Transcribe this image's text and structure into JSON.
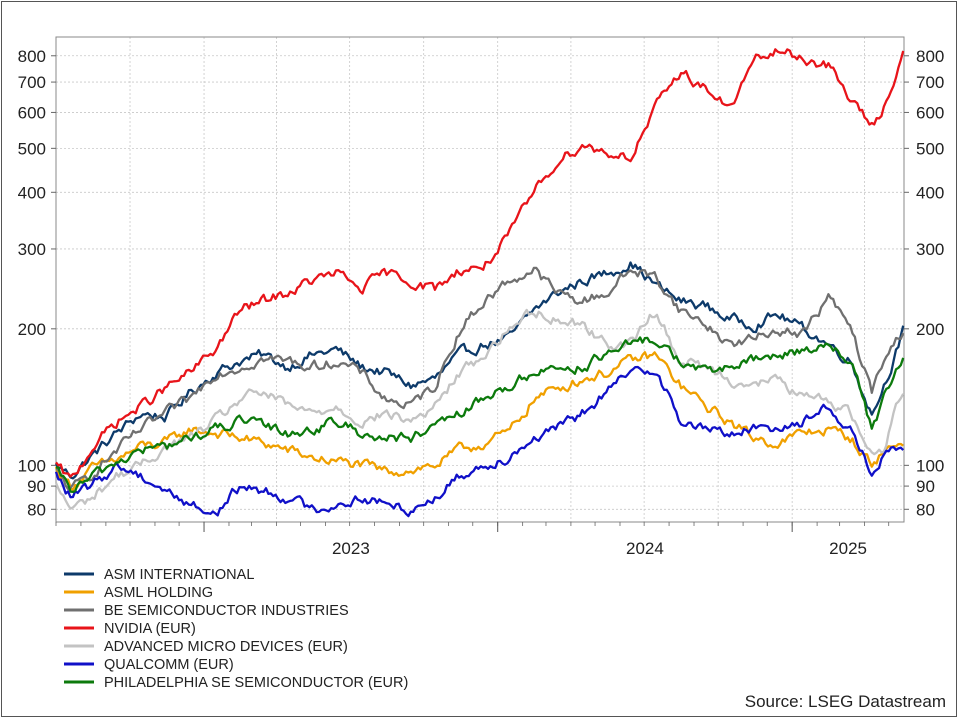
{
  "chart_data": {
    "type": "line",
    "title": "",
    "xlabel": "",
    "ylabel": "",
    "y_scale": "log",
    "ylim": [
      75,
      880
    ],
    "y_ticks": [
      80,
      90,
      100,
      200,
      300,
      400,
      500,
      600,
      700,
      800
    ],
    "x_range": [
      "2022-07-01",
      "2025-05-20"
    ],
    "x_ticks": [
      {
        "label": "2023",
        "date": "2023-01-01"
      },
      {
        "label": "2024",
        "date": "2024-01-01"
      },
      {
        "label": "2025",
        "date": "2025-01-01"
      }
    ],
    "grid": true,
    "legend_position": "bottom-left",
    "series": [
      {
        "name": "ASM INTERNATIONAL",
        "color": "#0d3a6a",
        "x": [
          "2022-07-01",
          "2022-07-20",
          "2022-08-15",
          "2022-09-15",
          "2022-10-15",
          "2022-11-15",
          "2022-12-15",
          "2023-01-15",
          "2023-02-15",
          "2023-03-15",
          "2023-04-15",
          "2023-05-15",
          "2023-06-15",
          "2023-07-15",
          "2023-08-15",
          "2023-09-15",
          "2023-10-15",
          "2023-11-15",
          "2023-12-15",
          "2024-01-15",
          "2024-02-15",
          "2024-03-15",
          "2024-04-15",
          "2024-05-15",
          "2024-06-15",
          "2024-07-15",
          "2024-08-15",
          "2024-09-15",
          "2024-10-15",
          "2024-11-15",
          "2024-12-15",
          "2025-01-15",
          "2025-02-15",
          "2025-03-15",
          "2025-04-10",
          "2025-04-25",
          "2025-05-20"
        ],
        "y": [
          100,
          95,
          105,
          118,
          130,
          128,
          145,
          160,
          170,
          175,
          165,
          175,
          180,
          165,
          160,
          150,
          155,
          175,
          185,
          190,
          220,
          240,
          255,
          265,
          280,
          250,
          230,
          225,
          210,
          205,
          215,
          200,
          185,
          170,
          130,
          150,
          200
        ]
      },
      {
        "name": "ASML HOLDING",
        "color": "#f0a000",
        "x": [
          "2022-07-01",
          "2022-07-20",
          "2022-08-15",
          "2022-09-15",
          "2022-10-15",
          "2022-11-15",
          "2022-12-15",
          "2023-01-15",
          "2023-02-15",
          "2023-03-15",
          "2023-04-15",
          "2023-05-15",
          "2023-06-15",
          "2023-07-15",
          "2023-08-15",
          "2023-09-15",
          "2023-10-15",
          "2023-11-15",
          "2023-12-15",
          "2024-01-15",
          "2024-02-15",
          "2024-03-15",
          "2024-04-15",
          "2024-05-15",
          "2024-06-15",
          "2024-07-15",
          "2024-08-15",
          "2024-09-15",
          "2024-10-15",
          "2024-11-15",
          "2024-12-15",
          "2025-01-15",
          "2025-02-15",
          "2025-03-15",
          "2025-04-10",
          "2025-04-25",
          "2025-05-20"
        ],
        "y": [
          98,
          90,
          98,
          103,
          110,
          112,
          120,
          118,
          115,
          112,
          108,
          104,
          102,
          100,
          97,
          98,
          100,
          108,
          112,
          118,
          140,
          148,
          155,
          160,
          170,
          175,
          150,
          135,
          125,
          115,
          112,
          118,
          120,
          115,
          100,
          108,
          112
        ]
      },
      {
        "name": "BE SEMICONDUCTOR INDUSTRIES",
        "color": "#707070",
        "x": [
          "2022-07-01",
          "2022-07-20",
          "2022-08-15",
          "2022-09-15",
          "2022-10-15",
          "2022-11-15",
          "2022-12-15",
          "2023-01-15",
          "2023-02-15",
          "2023-03-15",
          "2023-04-15",
          "2023-05-15",
          "2023-06-15",
          "2023-07-15",
          "2023-08-15",
          "2023-09-15",
          "2023-10-15",
          "2023-11-15",
          "2023-12-15",
          "2024-01-15",
          "2024-02-15",
          "2024-03-15",
          "2024-04-15",
          "2024-05-15",
          "2024-06-15",
          "2024-07-15",
          "2024-08-15",
          "2024-09-15",
          "2024-10-15",
          "2024-11-15",
          "2024-12-15",
          "2025-01-15",
          "2025-02-15",
          "2025-03-15",
          "2025-04-10",
          "2025-04-25",
          "2025-05-20"
        ],
        "y": [
          97,
          88,
          96,
          108,
          120,
          130,
          140,
          160,
          165,
          172,
          170,
          165,
          170,
          160,
          140,
          135,
          150,
          200,
          230,
          255,
          270,
          240,
          230,
          240,
          270,
          260,
          220,
          205,
          185,
          190,
          200,
          195,
          235,
          200,
          145,
          170,
          200
        ]
      },
      {
        "name": "NVIDIA (EUR)",
        "color": "#e8141a",
        "x": [
          "2022-07-01",
          "2022-07-20",
          "2022-08-15",
          "2022-09-15",
          "2022-10-15",
          "2022-11-15",
          "2022-12-15",
          "2023-01-15",
          "2023-02-15",
          "2023-03-15",
          "2023-04-15",
          "2023-05-15",
          "2023-06-15",
          "2023-07-15",
          "2023-08-15",
          "2023-09-15",
          "2023-10-15",
          "2023-11-15",
          "2023-12-15",
          "2024-01-15",
          "2024-02-15",
          "2024-03-15",
          "2024-04-15",
          "2024-05-15",
          "2024-06-15",
          "2024-07-15",
          "2024-08-15",
          "2024-09-15",
          "2024-10-15",
          "2024-11-15",
          "2024-12-15",
          "2025-01-15",
          "2025-02-15",
          "2025-03-15",
          "2025-04-10",
          "2025-04-25",
          "2025-05-20"
        ],
        "y": [
          100,
          92,
          110,
          125,
          135,
          148,
          160,
          180,
          220,
          230,
          240,
          255,
          265,
          245,
          265,
          255,
          245,
          270,
          275,
          320,
          400,
          470,
          510,
          490,
          480,
          610,
          740,
          680,
          610,
          780,
          820,
          790,
          760,
          640,
          560,
          620,
          820
        ]
      },
      {
        "name": "ADVANCED MICRO DEVICES (EUR)",
        "color": "#c3c3c3",
        "x": [
          "2022-07-01",
          "2022-07-20",
          "2022-08-15",
          "2022-09-15",
          "2022-10-15",
          "2022-11-15",
          "2022-12-15",
          "2023-01-15",
          "2023-02-15",
          "2023-03-15",
          "2023-04-15",
          "2023-05-15",
          "2023-06-15",
          "2023-07-15",
          "2023-08-15",
          "2023-09-15",
          "2023-10-15",
          "2023-11-15",
          "2023-12-15",
          "2024-01-15",
          "2024-02-15",
          "2024-03-15",
          "2024-04-15",
          "2024-05-15",
          "2024-06-15",
          "2024-07-15",
          "2024-08-15",
          "2024-09-15",
          "2024-10-15",
          "2024-11-15",
          "2024-12-15",
          "2025-01-15",
          "2025-02-15",
          "2025-03-15",
          "2025-04-10",
          "2025-04-25",
          "2025-05-20"
        ],
        "y": [
          90,
          80,
          85,
          95,
          100,
          110,
          115,
          125,
          140,
          145,
          135,
          130,
          135,
          125,
          130,
          125,
          135,
          160,
          175,
          200,
          220,
          210,
          205,
          185,
          185,
          220,
          170,
          165,
          155,
          150,
          155,
          140,
          140,
          130,
          105,
          110,
          150
        ]
      },
      {
        "name": "QUALCOMM (EUR)",
        "color": "#1010c8",
        "x": [
          "2022-07-01",
          "2022-07-20",
          "2022-08-15",
          "2022-09-15",
          "2022-10-15",
          "2022-11-15",
          "2022-12-15",
          "2023-01-15",
          "2023-02-15",
          "2023-03-15",
          "2023-04-15",
          "2023-05-15",
          "2023-06-15",
          "2023-07-15",
          "2023-08-15",
          "2023-09-15",
          "2023-10-15",
          "2023-11-15",
          "2023-12-15",
          "2024-01-15",
          "2024-02-15",
          "2024-03-15",
          "2024-04-15",
          "2024-05-15",
          "2024-06-15",
          "2024-07-15",
          "2024-08-15",
          "2024-09-15",
          "2024-10-15",
          "2024-11-15",
          "2024-12-15",
          "2025-01-15",
          "2025-02-15",
          "2025-03-15",
          "2025-04-10",
          "2025-04-25",
          "2025-05-20"
        ],
        "y": [
          95,
          85,
          90,
          100,
          95,
          88,
          82,
          78,
          90,
          88,
          85,
          80,
          82,
          85,
          82,
          80,
          85,
          95,
          100,
          105,
          115,
          120,
          130,
          145,
          160,
          165,
          125,
          120,
          118,
          120,
          122,
          125,
          135,
          120,
          95,
          105,
          108
        ]
      },
      {
        "name": "PHILADELPHIA SE SEMICONDUCTOR (EUR)",
        "color": "#0c7a0c",
        "x": [
          "2022-07-01",
          "2022-07-20",
          "2022-08-15",
          "2022-09-15",
          "2022-10-15",
          "2022-11-15",
          "2022-12-15",
          "2023-01-15",
          "2023-02-15",
          "2023-03-15",
          "2023-04-15",
          "2023-05-15",
          "2023-06-15",
          "2023-07-15",
          "2023-08-15",
          "2023-09-15",
          "2023-10-15",
          "2023-11-15",
          "2023-12-15",
          "2024-01-15",
          "2024-02-15",
          "2024-03-15",
          "2024-04-15",
          "2024-05-15",
          "2024-06-15",
          "2024-07-15",
          "2024-08-15",
          "2024-09-15",
          "2024-10-15",
          "2024-11-15",
          "2024-12-15",
          "2025-01-15",
          "2025-02-15",
          "2025-03-15",
          "2025-04-10",
          "2025-04-25",
          "2025-05-20"
        ],
        "y": [
          97,
          88,
          94,
          102,
          108,
          110,
          115,
          120,
          125,
          122,
          118,
          120,
          125,
          118,
          115,
          115,
          120,
          130,
          140,
          150,
          160,
          165,
          165,
          175,
          185,
          190,
          170,
          160,
          165,
          170,
          175,
          180,
          185,
          170,
          120,
          140,
          175
        ]
      }
    ]
  },
  "footer": {
    "source": "Source: LSEG Datastream"
  }
}
